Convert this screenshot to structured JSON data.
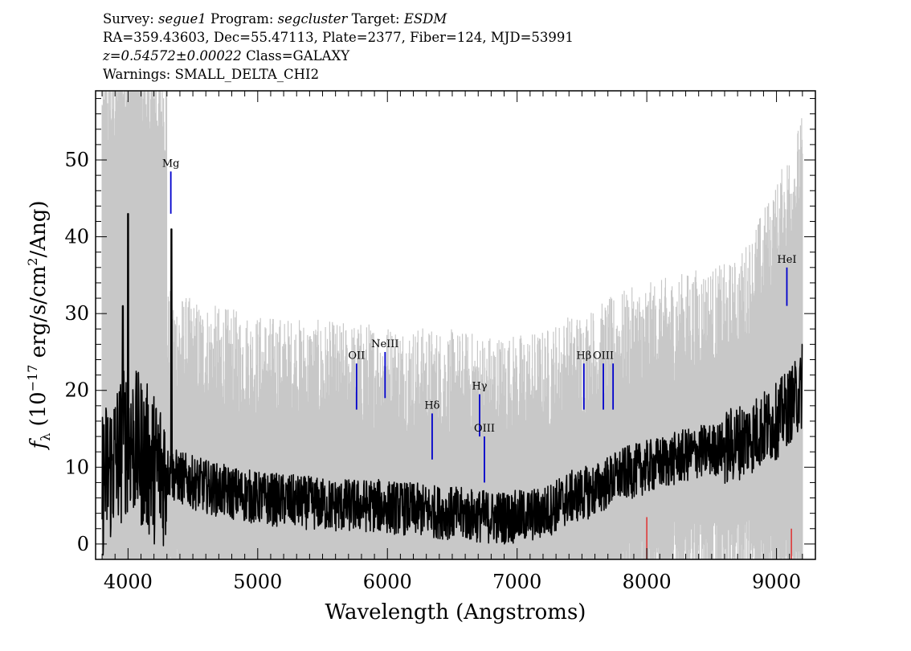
{
  "header": {
    "survey_label": "Survey:",
    "survey": "segue1",
    "program_label": "Program:",
    "program": "segcluster",
    "target_label": "Target:",
    "target": "ESDM",
    "line2": "RA=359.43603, Dec=55.47113, Plate=2377, Fiber=124, MJD=53991",
    "redshift": "z=0.54572±0.00022",
    "class": "Class=GALAXY",
    "warnings": "Warnings: SMALL_DELTA_CHI2"
  },
  "chart_data": {
    "type": "line",
    "title": "",
    "xlabel": "Wavelength (Angstroms)",
    "ylabel_prefix": "f",
    "ylabel_sub": "λ",
    "ylabel_open": " (10",
    "ylabel_exp": "−17",
    "ylabel_mid": " erg/s/cm",
    "ylabel_exp2": "2",
    "ylabel_end": "/Ang)",
    "xlim": [
      3750,
      9300
    ],
    "ylim": [
      -2,
      59
    ],
    "x_ticks": [
      4000,
      5000,
      6000,
      7000,
      8000,
      9000
    ],
    "x_tick_labels": [
      "4000",
      "5000",
      "6000",
      "7000",
      "8000",
      "9000"
    ],
    "y_ticks": [
      0,
      10,
      20,
      30,
      40,
      50
    ],
    "y_tick_labels": [
      "0",
      "10",
      "20",
      "30",
      "40",
      "50"
    ],
    "colors": {
      "flux": "#000000",
      "error": "#c8c8c8",
      "lines": "#0000cc",
      "mask": "#e03030"
    },
    "continuum": {
      "x": [
        3800,
        3900,
        4000,
        4100,
        4200,
        4350,
        4500,
        4700,
        5000,
        5300,
        5600,
        5900,
        6200,
        6500,
        6800,
        7000,
        7200,
        7400,
        7600,
        7800,
        8000,
        8200,
        8400,
        8600,
        8800,
        9000,
        9100,
        9200
      ],
      "y": [
        8,
        11,
        14,
        12,
        10,
        9,
        8,
        7,
        6,
        5.5,
        5,
        5,
        4.5,
        4,
        3.5,
        3.5,
        4,
        6,
        7,
        9,
        10,
        11,
        12,
        12.5,
        14,
        16,
        18,
        20
      ]
    },
    "spikes": [
      {
        "x": 4000,
        "y": 43
      },
      {
        "x": 4335,
        "y": 41
      },
      {
        "x": 3960,
        "y": 31
      },
      {
        "x": 9200,
        "y": 26
      }
    ],
    "emission_lines": [
      {
        "label": "Mg",
        "x": 4330,
        "y_top": 48.5,
        "y_bottom": 43
      },
      {
        "label": "OII",
        "x": 5762,
        "y_top": 23.5,
        "y_bottom": 17.5
      },
      {
        "label": "NeIII",
        "x": 5982,
        "y_top": 25,
        "y_bottom": 19
      },
      {
        "label": "Hδ",
        "x": 6345,
        "y_top": 17,
        "y_bottom": 11
      },
      {
        "label": "Hγ",
        "x": 6711,
        "y_top": 19.5,
        "y_bottom": 14
      },
      {
        "label": "OIII",
        "x": 6748,
        "y_top": 14,
        "y_bottom": 8
      },
      {
        "label": "Hβ",
        "x": 7515,
        "y_top": 23.5,
        "y_bottom": 17.5
      },
      {
        "label": "OIII",
        "x": 7665,
        "y_top": 23.5,
        "y_bottom": 17.5
      },
      {
        "label": "",
        "x": 7740,
        "y_top": 23.5,
        "y_bottom": 17.5
      },
      {
        "label": "HeI",
        "x": 9080,
        "y_top": 36,
        "y_bottom": 31
      }
    ],
    "mask_lines": [
      {
        "x": 8000,
        "y_top": 3.5,
        "y_bottom": -2
      },
      {
        "x": 9115,
        "y_top": 2,
        "y_bottom": -2
      }
    ]
  }
}
